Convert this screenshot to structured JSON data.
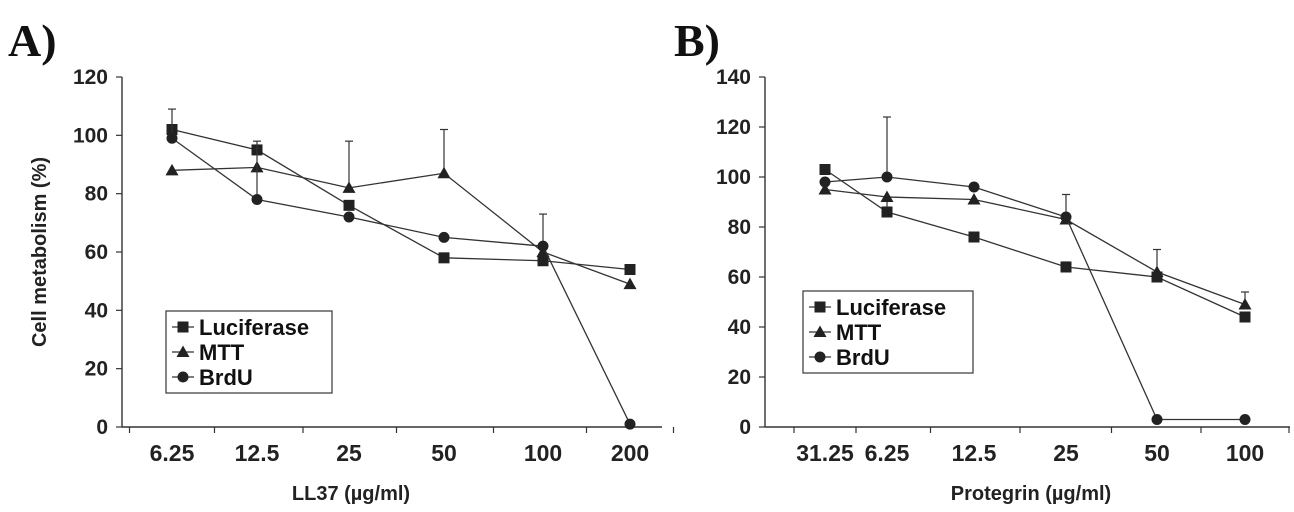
{
  "chart_data": [
    {
      "panel": "A)",
      "type": "line",
      "xlabel": "LL37 (µg/ml)",
      "ylabel": "Cell metabolism (%)",
      "categories": [
        "6.25",
        "12.5",
        "25",
        "50",
        "100",
        "200"
      ],
      "ylim": [
        0,
        120
      ],
      "yticks": [
        0,
        20,
        40,
        60,
        80,
        100,
        120
      ],
      "legend_position": "bottom-left",
      "series": [
        {
          "name": "Luciferase",
          "marker": "square",
          "values": [
            102,
            95,
            76,
            58,
            57,
            54
          ],
          "errors": [
            0,
            0,
            0,
            0,
            4,
            0
          ]
        },
        {
          "name": "MTT",
          "marker": "triangle",
          "values": [
            88,
            89,
            82,
            87,
            60,
            49
          ],
          "errors": [
            0,
            0,
            16,
            15,
            0,
            0
          ]
        },
        {
          "name": "BrdU",
          "marker": "circle",
          "values": [
            99,
            78,
            72,
            65,
            62,
            1
          ],
          "errors": [
            10,
            20,
            0,
            0,
            11,
            0
          ]
        }
      ]
    },
    {
      "panel": "B)",
      "type": "line",
      "xlabel": "Protegrin (µg/ml)",
      "ylabel": "",
      "categories": [
        "31.25",
        "6.25",
        "12.5",
        "25",
        "50",
        "100"
      ],
      "ylim": [
        0,
        140
      ],
      "yticks": [
        0,
        20,
        40,
        60,
        80,
        100,
        120,
        140
      ],
      "legend_position": "bottom-left",
      "series": [
        {
          "name": "Luciferase",
          "marker": "square",
          "values": [
            103,
            86,
            76,
            64,
            60,
            44
          ],
          "errors": [
            0,
            5,
            0,
            2,
            0,
            0
          ]
        },
        {
          "name": "MTT",
          "marker": "triangle",
          "values": [
            95,
            92,
            91,
            83,
            62,
            49
          ],
          "errors": [
            0,
            0,
            0,
            10,
            9,
            5
          ]
        },
        {
          "name": "BrdU",
          "marker": "circle",
          "values": [
            98,
            100,
            96,
            84,
            3,
            3
          ],
          "errors": [
            0,
            24,
            0,
            0,
            0,
            0
          ]
        }
      ]
    }
  ]
}
